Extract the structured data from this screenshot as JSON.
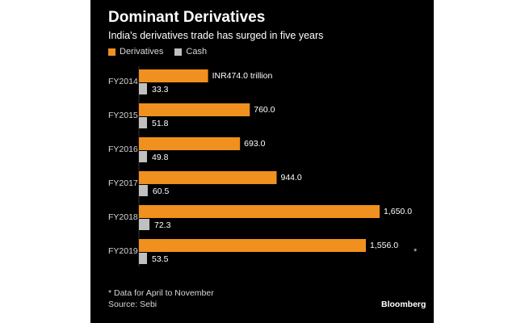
{
  "chart_data": {
    "type": "bar",
    "orientation": "horizontal",
    "title": "Dominant Derivatives",
    "subtitle": "India's derivatives trade has surged in five years",
    "categories": [
      "FY2014",
      "FY2015",
      "FY2016",
      "FY2017",
      "FY2018",
      "FY2019"
    ],
    "series": [
      {
        "name": "Derivatives",
        "color": "#f0901e",
        "values": [
          474.0,
          760.0,
          693.0,
          944.0,
          1650.0,
          1556.0
        ],
        "labels": [
          "INR474.0 trillion",
          "760.0",
          "693.0",
          "944.0",
          "1,650.0",
          "1,556.0"
        ]
      },
      {
        "name": "Cash",
        "color": "#c0c0c0",
        "values": [
          33.3,
          51.8,
          49.8,
          60.5,
          72.3,
          53.5
        ],
        "labels": [
          "33.3",
          "51.8",
          "49.8",
          "60.5",
          "72.3",
          "53.5"
        ]
      }
    ],
    "xlim": [
      0,
      1650
    ],
    "grid": false,
    "legend": "top-left",
    "annotation": {
      "category": "FY2019",
      "marker": "*"
    }
  },
  "footnote": "* Data for April to November",
  "source": "Source: Sebi",
  "brand": "Bloomberg",
  "colors": {
    "background": "#000000",
    "text": "#ffffff"
  }
}
